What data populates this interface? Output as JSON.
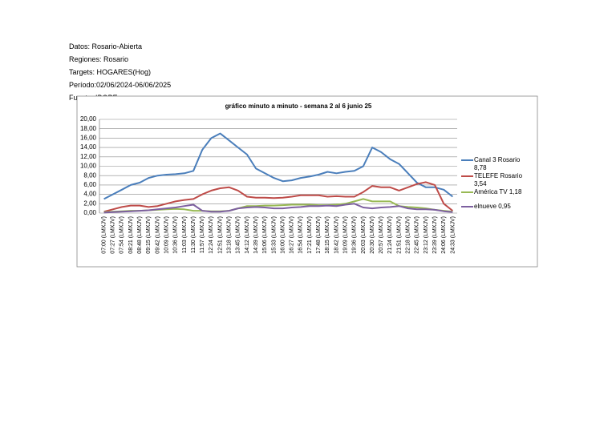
{
  "document": {
    "lines": [
      "Datos: Rosario-Abierta",
      "Regiones: Rosario",
      "Targets: HOGARES(Hog)",
      "Período:02/06/2024-06/06/2025",
      "Fuente: IBOPE"
    ]
  },
  "chart_data": {
    "type": "line",
    "title": "gráfico minuto a minuto - semana 2 al 6 junio 25",
    "categories": [
      "07:00 (LMXJV)",
      "07:27 (LMXJV)",
      "07:54 (LMXJV)",
      "08:21 (LMXJV)",
      "08:48 (LMXJV)",
      "09:15 (LMXJV)",
      "09:42 (LMXJV)",
      "10:09 (LMXJV)",
      "10:36 (LMXJV)",
      "11:03 (LMXJV)",
      "11:30 (LMXJV)",
      "11:57 (LMXJV)",
      "12:24 (LMXJV)",
      "12:51 (LMXJV)",
      "13:18 (LMXJV)",
      "13:45 (LMXJV)",
      "14:12 (LMXJV)",
      "14:39 (LMXJV)",
      "15:06 (LMXJV)",
      "15:33 (LMXJV)",
      "16:00 (LMXJV)",
      "16:27 (LMXJV)",
      "16:54 (LMXJV)",
      "17:21 (LMXJV)",
      "17:48 (LMXJV)",
      "18:15 (LMXJV)",
      "18:42 (LMXJV)",
      "19:09 (LMXJV)",
      "19:36 (LMXJV)",
      "20:03 (LMXJV)",
      "20:30 (LMXJV)",
      "20:57 (LMXJV)",
      "21:24 (LMXJV)",
      "21:51 (LMXJV)",
      "22:18 (LMXJV)",
      "22:45 (LMXJV)",
      "23:12 (LMXJV)",
      "23:39 (LMXJV)",
      "24:06 (LMXJV)",
      "24:33 (LMXJV)"
    ],
    "series": [
      {
        "name": "Canal 3 Rosario 8,78",
        "color": "#4a7ebb",
        "values": [
          3.0,
          4.0,
          5.0,
          6.0,
          6.5,
          7.5,
          8.0,
          8.2,
          8.3,
          8.5,
          9.0,
          13.5,
          16.0,
          17.0,
          15.5,
          14.0,
          12.5,
          9.5,
          8.5,
          7.5,
          6.8,
          7.0,
          7.5,
          7.8,
          8.2,
          8.8,
          8.5,
          8.8,
          9.0,
          10.0,
          14.0,
          13.0,
          11.5,
          10.5,
          8.5,
          6.5,
          5.5,
          5.5,
          5.0,
          3.5
        ]
      },
      {
        "name": "TELEFE Rosario 3,54",
        "color": "#be4b48",
        "values": [
          0.3,
          0.8,
          1.3,
          1.6,
          1.6,
          1.3,
          1.5,
          2.0,
          2.5,
          2.8,
          3.0,
          4.0,
          4.8,
          5.3,
          5.5,
          4.8,
          3.5,
          3.3,
          3.3,
          3.2,
          3.3,
          3.5,
          3.8,
          3.8,
          3.8,
          3.5,
          3.6,
          3.5,
          3.5,
          4.5,
          5.8,
          5.5,
          5.5,
          4.8,
          5.5,
          6.2,
          6.6,
          6.0,
          2.0,
          0.5
        ]
      },
      {
        "name": "América TV 1,18",
        "color": "#98b954",
        "values": [
          0.2,
          0.3,
          0.4,
          0.5,
          0.5,
          0.6,
          0.7,
          0.8,
          0.9,
          0.8,
          0.5,
          0.5,
          0.4,
          0.4,
          0.5,
          1.0,
          1.5,
          1.5,
          1.6,
          1.6,
          1.7,
          1.8,
          1.8,
          1.8,
          1.7,
          1.7,
          1.8,
          2.0,
          2.5,
          3.0,
          2.5,
          2.5,
          2.5,
          1.5,
          1.3,
          1.2,
          1.0,
          0.7,
          0.5,
          0.3
        ]
      },
      {
        "name": "elnueve 0,95",
        "color": "#7d60a0",
        "values": [
          0.1,
          0.2,
          0.3,
          0.4,
          0.5,
          0.6,
          0.8,
          1.0,
          1.2,
          1.5,
          1.8,
          0.5,
          0.3,
          0.3,
          0.5,
          1.0,
          1.2,
          1.3,
          1.2,
          1.0,
          1.0,
          1.2,
          1.3,
          1.5,
          1.5,
          1.6,
          1.5,
          1.8,
          2.0,
          1.2,
          1.0,
          1.2,
          1.3,
          1.5,
          1.0,
          0.8,
          0.8,
          0.7,
          0.4,
          0.2
        ]
      }
    ],
    "ylim": [
      0,
      20
    ],
    "yticks": [
      {
        "value": 0,
        "label": "0,00"
      },
      {
        "value": 2,
        "label": "2,00"
      },
      {
        "value": 4,
        "label": "4,00"
      },
      {
        "value": 6,
        "label": "6,00"
      },
      {
        "value": 8,
        "label": "8,00"
      },
      {
        "value": 10,
        "label": "10,00"
      },
      {
        "value": 12,
        "label": "12,00"
      },
      {
        "value": 14,
        "label": "14,00"
      },
      {
        "value": 16,
        "label": "16,00"
      },
      {
        "value": 18,
        "label": "18,00"
      },
      {
        "value": 20,
        "label": "20,00"
      }
    ],
    "grid": true,
    "legend": "right"
  }
}
